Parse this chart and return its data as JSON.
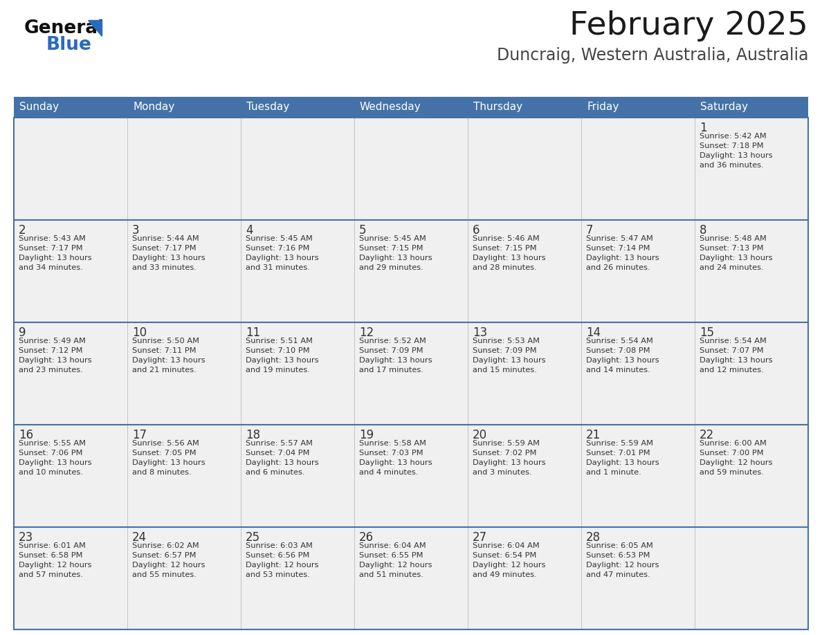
{
  "title": "February 2025",
  "subtitle": "Duncraig, Western Australia, Australia",
  "days_of_week": [
    "Sunday",
    "Monday",
    "Tuesday",
    "Wednesday",
    "Thursday",
    "Friday",
    "Saturday"
  ],
  "header_bg_color": "#4472a8",
  "header_text_color": "#ffffff",
  "cell_bg_color": "#f0f0f0",
  "border_color": "#4472a8",
  "row_border_color": "#4472a8",
  "day_number_color": "#333333",
  "cell_text_color": "#333333",
  "title_color": "#1a1a1a",
  "subtitle_color": "#444444",
  "logo_general_color": "#111111",
  "logo_blue_color": "#2a6bbf",
  "weeks": [
    [
      {
        "day": null,
        "info": null
      },
      {
        "day": null,
        "info": null
      },
      {
        "day": null,
        "info": null
      },
      {
        "day": null,
        "info": null
      },
      {
        "day": null,
        "info": null
      },
      {
        "day": null,
        "info": null
      },
      {
        "day": 1,
        "info": "Sunrise: 5:42 AM\nSunset: 7:18 PM\nDaylight: 13 hours\nand 36 minutes."
      }
    ],
    [
      {
        "day": 2,
        "info": "Sunrise: 5:43 AM\nSunset: 7:17 PM\nDaylight: 13 hours\nand 34 minutes."
      },
      {
        "day": 3,
        "info": "Sunrise: 5:44 AM\nSunset: 7:17 PM\nDaylight: 13 hours\nand 33 minutes."
      },
      {
        "day": 4,
        "info": "Sunrise: 5:45 AM\nSunset: 7:16 PM\nDaylight: 13 hours\nand 31 minutes."
      },
      {
        "day": 5,
        "info": "Sunrise: 5:45 AM\nSunset: 7:15 PM\nDaylight: 13 hours\nand 29 minutes."
      },
      {
        "day": 6,
        "info": "Sunrise: 5:46 AM\nSunset: 7:15 PM\nDaylight: 13 hours\nand 28 minutes."
      },
      {
        "day": 7,
        "info": "Sunrise: 5:47 AM\nSunset: 7:14 PM\nDaylight: 13 hours\nand 26 minutes."
      },
      {
        "day": 8,
        "info": "Sunrise: 5:48 AM\nSunset: 7:13 PM\nDaylight: 13 hours\nand 24 minutes."
      }
    ],
    [
      {
        "day": 9,
        "info": "Sunrise: 5:49 AM\nSunset: 7:12 PM\nDaylight: 13 hours\nand 23 minutes."
      },
      {
        "day": 10,
        "info": "Sunrise: 5:50 AM\nSunset: 7:11 PM\nDaylight: 13 hours\nand 21 minutes."
      },
      {
        "day": 11,
        "info": "Sunrise: 5:51 AM\nSunset: 7:10 PM\nDaylight: 13 hours\nand 19 minutes."
      },
      {
        "day": 12,
        "info": "Sunrise: 5:52 AM\nSunset: 7:09 PM\nDaylight: 13 hours\nand 17 minutes."
      },
      {
        "day": 13,
        "info": "Sunrise: 5:53 AM\nSunset: 7:09 PM\nDaylight: 13 hours\nand 15 minutes."
      },
      {
        "day": 14,
        "info": "Sunrise: 5:54 AM\nSunset: 7:08 PM\nDaylight: 13 hours\nand 14 minutes."
      },
      {
        "day": 15,
        "info": "Sunrise: 5:54 AM\nSunset: 7:07 PM\nDaylight: 13 hours\nand 12 minutes."
      }
    ],
    [
      {
        "day": 16,
        "info": "Sunrise: 5:55 AM\nSunset: 7:06 PM\nDaylight: 13 hours\nand 10 minutes."
      },
      {
        "day": 17,
        "info": "Sunrise: 5:56 AM\nSunset: 7:05 PM\nDaylight: 13 hours\nand 8 minutes."
      },
      {
        "day": 18,
        "info": "Sunrise: 5:57 AM\nSunset: 7:04 PM\nDaylight: 13 hours\nand 6 minutes."
      },
      {
        "day": 19,
        "info": "Sunrise: 5:58 AM\nSunset: 7:03 PM\nDaylight: 13 hours\nand 4 minutes."
      },
      {
        "day": 20,
        "info": "Sunrise: 5:59 AM\nSunset: 7:02 PM\nDaylight: 13 hours\nand 3 minutes."
      },
      {
        "day": 21,
        "info": "Sunrise: 5:59 AM\nSunset: 7:01 PM\nDaylight: 13 hours\nand 1 minute."
      },
      {
        "day": 22,
        "info": "Sunrise: 6:00 AM\nSunset: 7:00 PM\nDaylight: 12 hours\nand 59 minutes."
      }
    ],
    [
      {
        "day": 23,
        "info": "Sunrise: 6:01 AM\nSunset: 6:58 PM\nDaylight: 12 hours\nand 57 minutes."
      },
      {
        "day": 24,
        "info": "Sunrise: 6:02 AM\nSunset: 6:57 PM\nDaylight: 12 hours\nand 55 minutes."
      },
      {
        "day": 25,
        "info": "Sunrise: 6:03 AM\nSunset: 6:56 PM\nDaylight: 12 hours\nand 53 minutes."
      },
      {
        "day": 26,
        "info": "Sunrise: 6:04 AM\nSunset: 6:55 PM\nDaylight: 12 hours\nand 51 minutes."
      },
      {
        "day": 27,
        "info": "Sunrise: 6:04 AM\nSunset: 6:54 PM\nDaylight: 12 hours\nand 49 minutes."
      },
      {
        "day": 28,
        "info": "Sunrise: 6:05 AM\nSunset: 6:53 PM\nDaylight: 12 hours\nand 47 minutes."
      },
      {
        "day": null,
        "info": null
      }
    ]
  ]
}
